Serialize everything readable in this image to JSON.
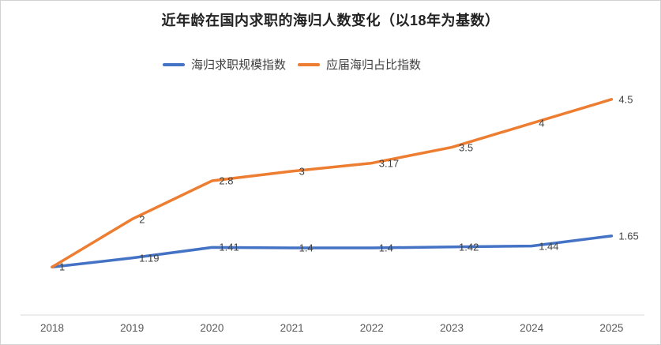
{
  "card": {
    "title": "近年龄在国内求职的海归人数变化（以18年为基数）"
  },
  "chart_data": {
    "type": "line",
    "title": "近年龄在国内求职的海归人数变化（以18年为基数）",
    "categories": [
      "2018",
      "2019",
      "2020",
      "2021",
      "2022",
      "2023",
      "2024",
      "2025"
    ],
    "series": [
      {
        "name": "海归求职规模指数",
        "color": "#4472C4",
        "values": [
          1,
          1.19,
          1.41,
          1.4,
          1.4,
          1.42,
          1.44,
          1.65
        ],
        "labels": [
          "1",
          "1.19",
          "1.41",
          "1.4",
          "1.4",
          "1.42",
          "1.44",
          "1.65"
        ]
      },
      {
        "name": "应届海归占比指数",
        "color": "#ED7D31",
        "values": [
          1,
          2,
          2.8,
          3,
          3.17,
          3.5,
          4,
          4.5
        ],
        "labels": [
          "1",
          "2",
          "2.8",
          "3",
          "3.17",
          "3.5",
          "4",
          "4.5"
        ]
      }
    ],
    "xlabel": "",
    "ylabel": "",
    "ylim": [
      0,
      4.5
    ],
    "grid": false,
    "legend_position": "top",
    "data_label_position": "right-of-point",
    "axis_line_color": "#d9d9d9",
    "label_color": "#404040",
    "tick_color": "#595959"
  }
}
